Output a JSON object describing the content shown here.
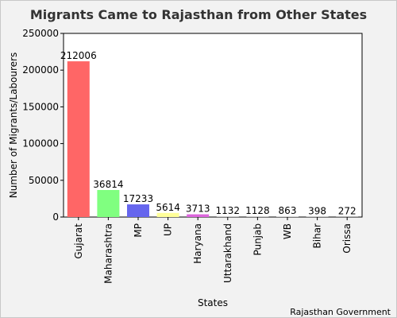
{
  "chart_data": {
    "type": "bar",
    "title": "Migrants Came to Rajasthan from Other States",
    "xlabel": "States",
    "ylabel": "Number of Migrants/Labourers",
    "categories": [
      "Gujarat",
      "Maharashtra",
      "MP",
      "UP",
      "Haryana",
      "Uttarakhand",
      "Punjab",
      "WB",
      "Bihar",
      "Orissa"
    ],
    "values": [
      212006,
      36814,
      17233,
      5614,
      3713,
      1132,
      1128,
      863,
      398,
      272
    ],
    "colors": [
      "#ff6666",
      "#80ff80",
      "#6666ee",
      "#ffff99",
      "#dd66dd",
      "#cccccc",
      "#cccccc",
      "#cccccc",
      "#cccccc",
      "#cccccc"
    ],
    "ylim": [
      0,
      250000
    ],
    "yticks": [
      0,
      50000,
      100000,
      150000,
      200000,
      250000
    ],
    "grid": false,
    "legend": "none"
  },
  "credit": "Rajasthan Government"
}
